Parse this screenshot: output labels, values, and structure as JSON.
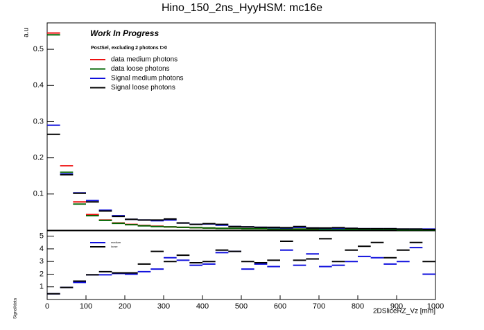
{
  "chart_data": [
    {
      "type": "histogram",
      "title": "Hino_150_2ns_HyyHSM: mc16e",
      "annotations": [
        "Work In Progress",
        "PostSel, excluding 2 photons t>0"
      ],
      "ylabel": "a.u",
      "bins": [
        0,
        33.333,
        66.667,
        100,
        133.333,
        166.667,
        200,
        233.333,
        266.667,
        300,
        333.333,
        366.667,
        400,
        433.333,
        466.667,
        500,
        533.333,
        566.667,
        600,
        633.333,
        666.667,
        700,
        733.333,
        766.667,
        800,
        833.333,
        866.667,
        900,
        933.333,
        966.667,
        1000
      ],
      "xlim": [
        0,
        1000
      ],
      "ylim": [
        0,
        0.573
      ],
      "yticks": [
        0.1,
        0.2,
        0.3,
        0.4,
        0.5
      ],
      "series": [
        {
          "name": "data medium photons",
          "color": "#ee1111",
          "values": [
            0.545,
            0.178,
            0.078,
            0.043,
            0.028,
            0.02,
            0.016,
            0.013,
            0.011,
            0.009,
            0.008,
            0.007,
            0.006,
            0.005,
            0.005,
            0.004,
            0.004,
            0.003,
            0.003,
            0.003,
            0.003,
            0.002,
            0.002,
            0.002,
            0.002,
            0.002,
            0.002,
            0.001,
            0.001,
            0.001
          ]
        },
        {
          "name": "data loose photons",
          "color": "#006400",
          "values": [
            0.54,
            0.16,
            0.072,
            0.04,
            0.027,
            0.019,
            0.015,
            0.012,
            0.01,
            0.009,
            0.008,
            0.007,
            0.006,
            0.005,
            0.005,
            0.004,
            0.004,
            0.003,
            0.003,
            0.003,
            0.003,
            0.002,
            0.002,
            0.002,
            0.002,
            0.002,
            0.002,
            0.001,
            0.001,
            0.001
          ]
        },
        {
          "name": "Signal medium photons",
          "color": "#1010dd",
          "values": [
            0.29,
            0.155,
            0.103,
            0.082,
            0.055,
            0.04,
            0.03,
            0.028,
            0.026,
            0.028,
            0.02,
            0.016,
            0.017,
            0.014,
            0.01,
            0.009,
            0.008,
            0.007,
            0.006,
            0.008,
            0.006,
            0.005,
            0.005,
            0.005,
            0.004,
            0.004,
            0.004,
            0.003,
            0.003,
            0.003
          ]
        },
        {
          "name": "Signal loose photons",
          "color": "#000000",
          "values": [
            0.265,
            0.153,
            0.102,
            0.078,
            0.053,
            0.038,
            0.03,
            0.028,
            0.028,
            0.031,
            0.02,
            0.016,
            0.018,
            0.016,
            0.01,
            0.009,
            0.008,
            0.008,
            0.007,
            0.01,
            0.006,
            0.006,
            0.007,
            0.005,
            0.004,
            0.004,
            0.004,
            0.003,
            0.003,
            0.002
          ]
        }
      ]
    },
    {
      "type": "histogram",
      "ylabel": "Signal/data",
      "xlabel": "2DSliceRZ_Vz [mm]",
      "bins": [
        0,
        33.333,
        66.667,
        100,
        133.333,
        166.667,
        200,
        233.333,
        266.667,
        300,
        333.333,
        366.667,
        400,
        433.333,
        466.667,
        500,
        533.333,
        566.667,
        600,
        633.333,
        666.667,
        700,
        733.333,
        766.667,
        800,
        833.333,
        866.667,
        900,
        933.333,
        966.667,
        1000
      ],
      "xlim": [
        0,
        1000
      ],
      "xticks": [
        0,
        100,
        200,
        300,
        400,
        500,
        600,
        700,
        800,
        900,
        1000
      ],
      "ylim": [
        0,
        5.42
      ],
      "yticks": [
        1,
        2,
        3,
        4,
        5
      ],
      "series": [
        {
          "name": "medium",
          "color": "#1010dd",
          "values": [
            0.45,
            0.95,
            1.35,
            1.95,
            1.95,
            2.05,
            2.0,
            2.2,
            2.4,
            3.3,
            3.1,
            2.7,
            2.8,
            3.7,
            3.8,
            2.4,
            2.8,
            2.6,
            3.9,
            2.7,
            3.6,
            2.6,
            2.7,
            3.0,
            3.4,
            3.3,
            2.8,
            3.0,
            4.1,
            2.0
          ]
        },
        {
          "name": "loose",
          "color": "#000000",
          "values": [
            0.45,
            0.95,
            1.45,
            1.95,
            2.2,
            2.1,
            2.1,
            2.8,
            3.8,
            3.0,
            3.5,
            2.9,
            3.0,
            3.9,
            3.8,
            3.0,
            2.9,
            3.1,
            4.6,
            3.1,
            3.2,
            4.8,
            3.0,
            3.9,
            4.2,
            4.5,
            3.3,
            3.9,
            4.5,
            3.0
          ]
        }
      ]
    }
  ]
}
